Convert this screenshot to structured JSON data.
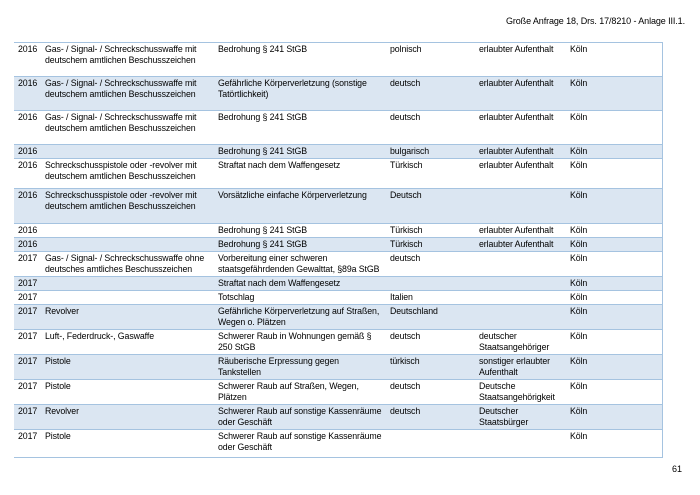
{
  "header": {
    "title": "Große Anfrage 18, Drs. 17/8210 - Anlage III.1."
  },
  "footer": {
    "page_number": "61"
  },
  "colors": {
    "row_stripe": "#dbe6f2",
    "table_border": "#a5c3e0",
    "text": "#000000"
  },
  "table": {
    "rows": [
      {
        "year": "2016",
        "weapon": "Gas- / Signal- / Schreckschusswaffe mit deutschem amtlichen Beschusszeichen",
        "offense": "Bedrohung § 241 StGB",
        "nationality": "polnisch",
        "status": "erlaubter Aufenthalt",
        "city": "Köln"
      },
      {
        "year": "2016",
        "weapon": "Gas- / Signal- / Schreckschusswaffe mit deutschem amtlichen Beschusszeichen",
        "offense": "Gefährliche Körperverletzung (sonstige Tatörtlichkeit)",
        "nationality": "deutsch",
        "status": "erlaubter Aufenthalt",
        "city": "Köln"
      },
      {
        "year": "2016",
        "weapon": "Gas- / Signal- / Schreckschusswaffe mit deutschem amtlichen Beschusszeichen",
        "offense": "Bedrohung § 241 StGB",
        "nationality": "deutsch",
        "status": "erlaubter Aufenthalt",
        "city": "Köln"
      },
      {
        "year": "2016",
        "weapon": "",
        "offense": "Bedrohung § 241 StGB",
        "nationality": "bulgarisch",
        "status": "erlaubter Aufenthalt",
        "city": "Köln"
      },
      {
        "year": "2016",
        "weapon": "Schreckschusspistole oder -revolver mit deutschem amtlichen Beschusszeichen",
        "offense": "Straftat nach dem Waffengesetz",
        "nationality": "Türkisch",
        "status": "erlaubter Aufenthalt",
        "city": "Köln"
      },
      {
        "year": "2016",
        "weapon": "Schreckschusspistole oder -revolver mit deutschem amtlichen Beschusszeichen",
        "offense": "Vorsätzliche einfache Körperverletzung",
        "nationality": "Deutsch",
        "status": "",
        "city": "Köln"
      },
      {
        "year": "2016",
        "weapon": "",
        "offense": "Bedrohung § 241 StGB",
        "nationality": "Türkisch",
        "status": "erlaubter Aufenthalt",
        "city": "Köln"
      },
      {
        "year": "2016",
        "weapon": "",
        "offense": "Bedrohung § 241 StGB",
        "nationality": "Türkisch",
        "status": "erlaubter Aufenthalt",
        "city": "Köln"
      },
      {
        "year": "2017",
        "weapon": "Gas- / Signal- / Schreckschusswaffe ohne deutsches amtliches Beschusszeichen",
        "offense": "Vorbereitung einer schweren staatsgefährdenden Gewalttat, §89a StGB",
        "nationality": "deutsch",
        "status": "",
        "city": "Köln"
      },
      {
        "year": "2017",
        "weapon": "",
        "offense": "Straftat nach dem Waffengesetz",
        "nationality": "",
        "status": "",
        "city": "Köln"
      },
      {
        "year": "2017",
        "weapon": "",
        "offense": "Totschlag",
        "nationality": "Italien",
        "status": "",
        "city": "Köln"
      },
      {
        "year": "2017",
        "weapon": "Revolver",
        "offense": "Gefährliche Körperverletzung auf Straßen, Wegen o. Plätzen",
        "nationality": "Deutschland",
        "status": "",
        "city": "Köln"
      },
      {
        "year": "2017",
        "weapon": "Luft-, Federdruck-, Gaswaffe",
        "offense": "Schwerer Raub in Wohnungen gemäß § 250 StGB",
        "nationality": "deutsch",
        "status": "deutscher Staatsangehöriger",
        "city": "Köln"
      },
      {
        "year": "2017",
        "weapon": "Pistole",
        "offense": "Räuberische Erpressung gegen Tankstellen",
        "nationality": "türkisch",
        "status": "sonstiger erlaubter Aufenthalt",
        "city": "Köln"
      },
      {
        "year": "2017",
        "weapon": "Pistole",
        "offense": "Schwerer Raub auf Straßen, Wegen, Plätzen",
        "nationality": "deutsch",
        "status": "Deutsche Staatsangehörigkeit",
        "city": "Köln"
      },
      {
        "year": "2017",
        "weapon": "Revolver",
        "offense": "Schwerer Raub auf sonstige Kassenräume oder Geschäft",
        "nationality": "deutsch",
        "status": "Deutscher Staatsbürger",
        "city": "Köln"
      },
      {
        "year": "2017",
        "weapon": "Pistole",
        "offense": "Schwerer Raub auf sonstige Kassenräume oder Geschäft",
        "nationality": "",
        "status": "",
        "city": "Köln"
      }
    ]
  }
}
